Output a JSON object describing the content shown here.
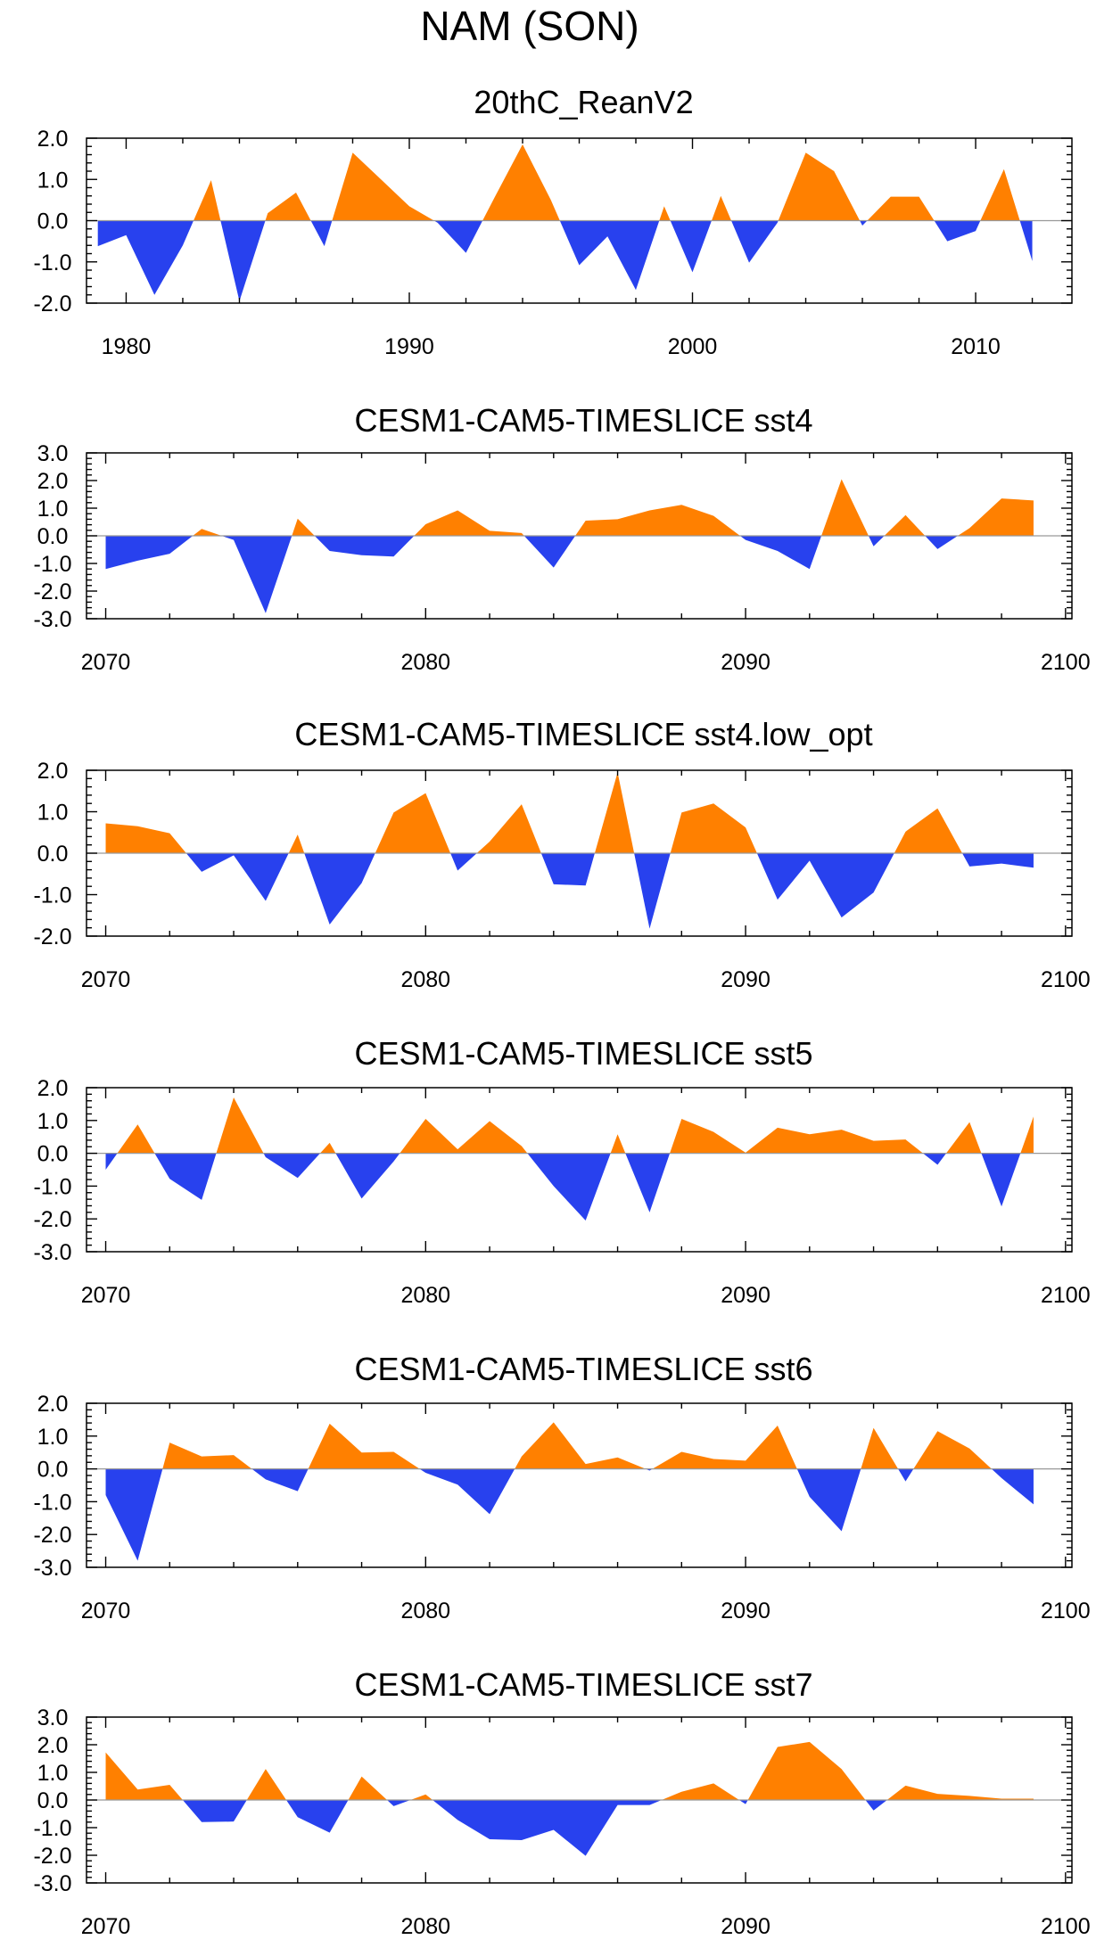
{
  "figure": {
    "title": "NAM (SON)",
    "colors": {
      "positive": "#ff8000",
      "negative": "#2841ee",
      "zero_line": "#999999",
      "frame": "#000000"
    }
  },
  "chart_data": [
    {
      "type": "area",
      "title": "20thC_ReanV2",
      "xlabel": "",
      "ylabel": "",
      "xlim": [
        1978.6,
        2013.4
      ],
      "ylim": [
        -2.0,
        2.0
      ],
      "yticks": [
        "2.0",
        "1.0",
        "0.0",
        "-1.0",
        "-2.0"
      ],
      "ytick_values": [
        2.0,
        1.0,
        0.0,
        -1.0,
        -2.0
      ],
      "xticks": [
        "1980",
        "1990",
        "2000",
        "2010"
      ],
      "xtick_values": [
        1980,
        1990,
        2000,
        2010
      ],
      "x": [
        1979,
        1980,
        1981,
        1982,
        1983,
        1984,
        1985,
        1986,
        1987,
        1988,
        1989,
        1990,
        1991,
        1992,
        1993,
        1994,
        1995,
        1996,
        1997,
        1998,
        1999,
        2000,
        2001,
        2002,
        2003,
        2004,
        2005,
        2006,
        2007,
        2008,
        2009,
        2010,
        2011,
        2012
      ],
      "values": [
        -0.62,
        -0.35,
        -1.8,
        -0.6,
        0.98,
        -1.95,
        0.18,
        0.68,
        -0.62,
        1.65,
        1.0,
        0.35,
        -0.05,
        -0.78,
        0.55,
        1.85,
        0.5,
        -1.08,
        -0.38,
        -1.68,
        0.35,
        -1.25,
        0.6,
        -1.02,
        -0.05,
        1.65,
        1.2,
        -0.12,
        0.58,
        0.58,
        -0.5,
        -0.25,
        1.25,
        -0.98
      ]
    },
    {
      "type": "area",
      "title": "CESM1-CAM5-TIMESLICE sst4",
      "xlabel": "",
      "ylabel": "",
      "xlim": [
        2069.4,
        2100.2
      ],
      "ylim": [
        -3.0,
        3.0
      ],
      "yticks": [
        "3.0",
        "2.0",
        "1.0",
        "0.0",
        "-1.0",
        "-2.0",
        "-3.0"
      ],
      "ytick_values": [
        3.0,
        2.0,
        1.0,
        0.0,
        -1.0,
        -2.0,
        -3.0
      ],
      "xticks": [
        "2070",
        "2080",
        "2090",
        "2100"
      ],
      "xtick_values": [
        2070,
        2080,
        2090,
        2100
      ],
      "x": [
        2070,
        2071,
        2072,
        2073,
        2074,
        2075,
        2076,
        2077,
        2078,
        2079,
        2080,
        2081,
        2082,
        2083,
        2084,
        2085,
        2086,
        2087,
        2088,
        2089,
        2090,
        2091,
        2092,
        2093,
        2094,
        2095,
        2096,
        2097,
        2098,
        2099
      ],
      "values": [
        -1.2,
        -0.9,
        -0.65,
        0.25,
        -0.15,
        -2.8,
        0.62,
        -0.55,
        -0.7,
        -0.75,
        0.42,
        0.92,
        0.18,
        0.1,
        -1.15,
        0.55,
        0.6,
        0.92,
        1.12,
        0.72,
        -0.15,
        -0.55,
        -1.2,
        2.05,
        -0.38,
        0.75,
        -0.48,
        0.28,
        1.35,
        1.28
      ]
    },
    {
      "type": "area",
      "title": "CESM1-CAM5-TIMESLICE sst4.low_opt",
      "xlabel": "",
      "ylabel": "",
      "xlim": [
        2069.4,
        2100.2
      ],
      "ylim": [
        -2.0,
        2.0
      ],
      "yticks": [
        "2.0",
        "1.0",
        "0.0",
        "-1.0",
        "-2.0"
      ],
      "ytick_values": [
        2.0,
        1.0,
        0.0,
        -1.0,
        -2.0
      ],
      "xticks": [
        "2070",
        "2080",
        "2090",
        "2100"
      ],
      "xtick_values": [
        2070,
        2080,
        2090,
        2100
      ],
      "x": [
        2070,
        2071,
        2072,
        2073,
        2074,
        2075,
        2076,
        2077,
        2078,
        2079,
        2080,
        2081,
        2082,
        2083,
        2084,
        2085,
        2086,
        2087,
        2088,
        2089,
        2090,
        2091,
        2092,
        2093,
        2094,
        2095,
        2096,
        2097,
        2098,
        2099
      ],
      "values": [
        0.72,
        0.65,
        0.48,
        -0.45,
        -0.05,
        -1.15,
        0.45,
        -1.72,
        -0.72,
        0.98,
        1.45,
        -0.42,
        0.28,
        1.18,
        -0.75,
        -0.78,
        1.95,
        -1.82,
        0.98,
        1.2,
        0.62,
        -1.12,
        -0.18,
        -1.55,
        -0.95,
        0.52,
        1.08,
        -0.32,
        -0.25,
        -0.35
      ]
    },
    {
      "type": "area",
      "title": "CESM1-CAM5-TIMESLICE sst5",
      "xlabel": "",
      "ylabel": "",
      "xlim": [
        2069.4,
        2100.2
      ],
      "ylim": [
        -3.0,
        2.0
      ],
      "yticks": [
        "2.0",
        "1.0",
        "0.0",
        "-1.0",
        "-2.0",
        "-3.0"
      ],
      "ytick_values": [
        2.0,
        1.0,
        0.0,
        -1.0,
        -2.0,
        -3.0
      ],
      "xticks": [
        "2070",
        "2080",
        "2090",
        "2100"
      ],
      "xtick_values": [
        2070,
        2080,
        2090,
        2100
      ],
      "x": [
        2070,
        2071,
        2072,
        2073,
        2074,
        2075,
        2076,
        2077,
        2078,
        2079,
        2080,
        2081,
        2082,
        2083,
        2084,
        2085,
        2086,
        2087,
        2088,
        2089,
        2090,
        2091,
        2092,
        2093,
        2094,
        2095,
        2096,
        2097,
        2098,
        2099
      ],
      "values": [
        -0.5,
        0.88,
        -0.78,
        -1.42,
        1.7,
        -0.12,
        -0.75,
        0.32,
        -1.38,
        -0.25,
        1.05,
        0.12,
        0.98,
        0.22,
        -1.0,
        -2.05,
        0.58,
        -1.8,
        1.05,
        0.65,
        0.02,
        0.78,
        0.58,
        0.72,
        0.38,
        0.42,
        -0.35,
        0.95,
        -1.62,
        1.12
      ]
    },
    {
      "type": "area",
      "title": "CESM1-CAM5-TIMESLICE sst6",
      "xlabel": "",
      "ylabel": "",
      "xlim": [
        2069.4,
        2100.2
      ],
      "ylim": [
        -3.0,
        2.0
      ],
      "yticks": [
        "2.0",
        "1.0",
        "0.0",
        "-1.0",
        "-2.0",
        "-3.0"
      ],
      "ytick_values": [
        2.0,
        1.0,
        0.0,
        -1.0,
        -2.0,
        -3.0
      ],
      "xticks": [
        "2070",
        "2080",
        "2090",
        "2100"
      ],
      "xtick_values": [
        2070,
        2080,
        2090,
        2100
      ],
      "x": [
        2070,
        2071,
        2072,
        2073,
        2074,
        2075,
        2076,
        2077,
        2078,
        2079,
        2080,
        2081,
        2082,
        2083,
        2084,
        2085,
        2086,
        2087,
        2088,
        2089,
        2090,
        2091,
        2092,
        2093,
        2094,
        2095,
        2096,
        2097,
        2098,
        2099
      ],
      "values": [
        -0.8,
        -2.8,
        0.8,
        0.38,
        0.42,
        -0.32,
        -0.68,
        1.38,
        0.5,
        0.52,
        -0.12,
        -0.48,
        -1.38,
        0.38,
        1.42,
        0.15,
        0.35,
        -0.05,
        0.52,
        0.3,
        0.25,
        1.32,
        -0.85,
        -1.9,
        1.25,
        -0.38,
        1.15,
        0.62,
        -0.28,
        -1.08
      ]
    },
    {
      "type": "area",
      "title": "CESM1-CAM5-TIMESLICE sst7",
      "xlabel": "",
      "ylabel": "",
      "xlim": [
        2069.4,
        2100.2
      ],
      "ylim": [
        -3.0,
        3.0
      ],
      "yticks": [
        "3.0",
        "2.0",
        "1.0",
        "0.0",
        "-1.0",
        "-2.0",
        "-3.0"
      ],
      "ytick_values": [
        3.0,
        2.0,
        1.0,
        0.0,
        -1.0,
        -2.0,
        -3.0
      ],
      "xticks": [
        "2070",
        "2080",
        "2090",
        "2100"
      ],
      "xtick_values": [
        2070,
        2080,
        2090,
        2100
      ],
      "x": [
        2070,
        2071,
        2072,
        2073,
        2074,
        2075,
        2076,
        2077,
        2078,
        2079,
        2080,
        2081,
        2082,
        2083,
        2084,
        2085,
        2086,
        2087,
        2088,
        2089,
        2090,
        2091,
        2092,
        2093,
        2094,
        2095,
        2096,
        2097,
        2098,
        2099
      ],
      "values": [
        1.72,
        0.38,
        0.55,
        -0.8,
        -0.78,
        1.12,
        -0.62,
        -1.18,
        0.85,
        -0.22,
        0.2,
        -0.72,
        -1.42,
        -1.45,
        -1.08,
        -2.02,
        -0.18,
        -0.18,
        0.3,
        0.6,
        -0.15,
        1.92,
        2.1,
        1.12,
        -0.38,
        0.52,
        0.22,
        0.15,
        0.05,
        0.05
      ]
    }
  ]
}
